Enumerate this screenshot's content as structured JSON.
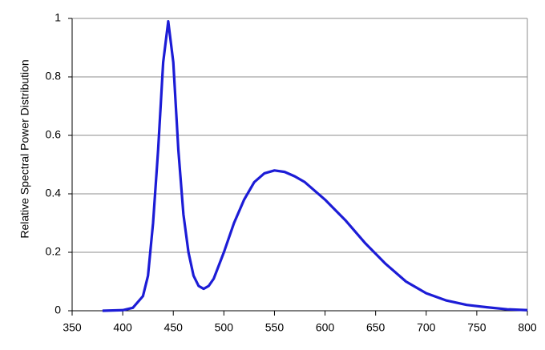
{
  "chart_data": {
    "type": "line",
    "ylabel": "Relative Spectral Power Distribution",
    "x": [
      380,
      400,
      410,
      420,
      425,
      430,
      435,
      440,
      445,
      450,
      455,
      460,
      465,
      470,
      475,
      480,
      485,
      490,
      500,
      510,
      520,
      530,
      540,
      550,
      560,
      570,
      580,
      600,
      620,
      640,
      660,
      680,
      700,
      720,
      740,
      760,
      780,
      800
    ],
    "series": [
      {
        "color": "#1c1cd6",
        "values": [
          0,
          0.002,
          0.01,
          0.05,
          0.12,
          0.3,
          0.55,
          0.85,
          0.99,
          0.85,
          0.55,
          0.33,
          0.2,
          0.12,
          0.085,
          0.075,
          0.085,
          0.11,
          0.2,
          0.3,
          0.38,
          0.44,
          0.47,
          0.48,
          0.475,
          0.46,
          0.44,
          0.38,
          0.31,
          0.23,
          0.16,
          0.1,
          0.06,
          0.035,
          0.02,
          0.012,
          0.005,
          0.002
        ]
      }
    ],
    "xlim": [
      350,
      800
    ],
    "xticks": [
      350,
      400,
      450,
      500,
      550,
      600,
      650,
      700,
      750,
      800
    ],
    "ylim": [
      0,
      1
    ],
    "yticks": [
      0,
      0.2,
      0.4,
      0.6,
      0.8,
      1
    ],
    "grid": true
  }
}
